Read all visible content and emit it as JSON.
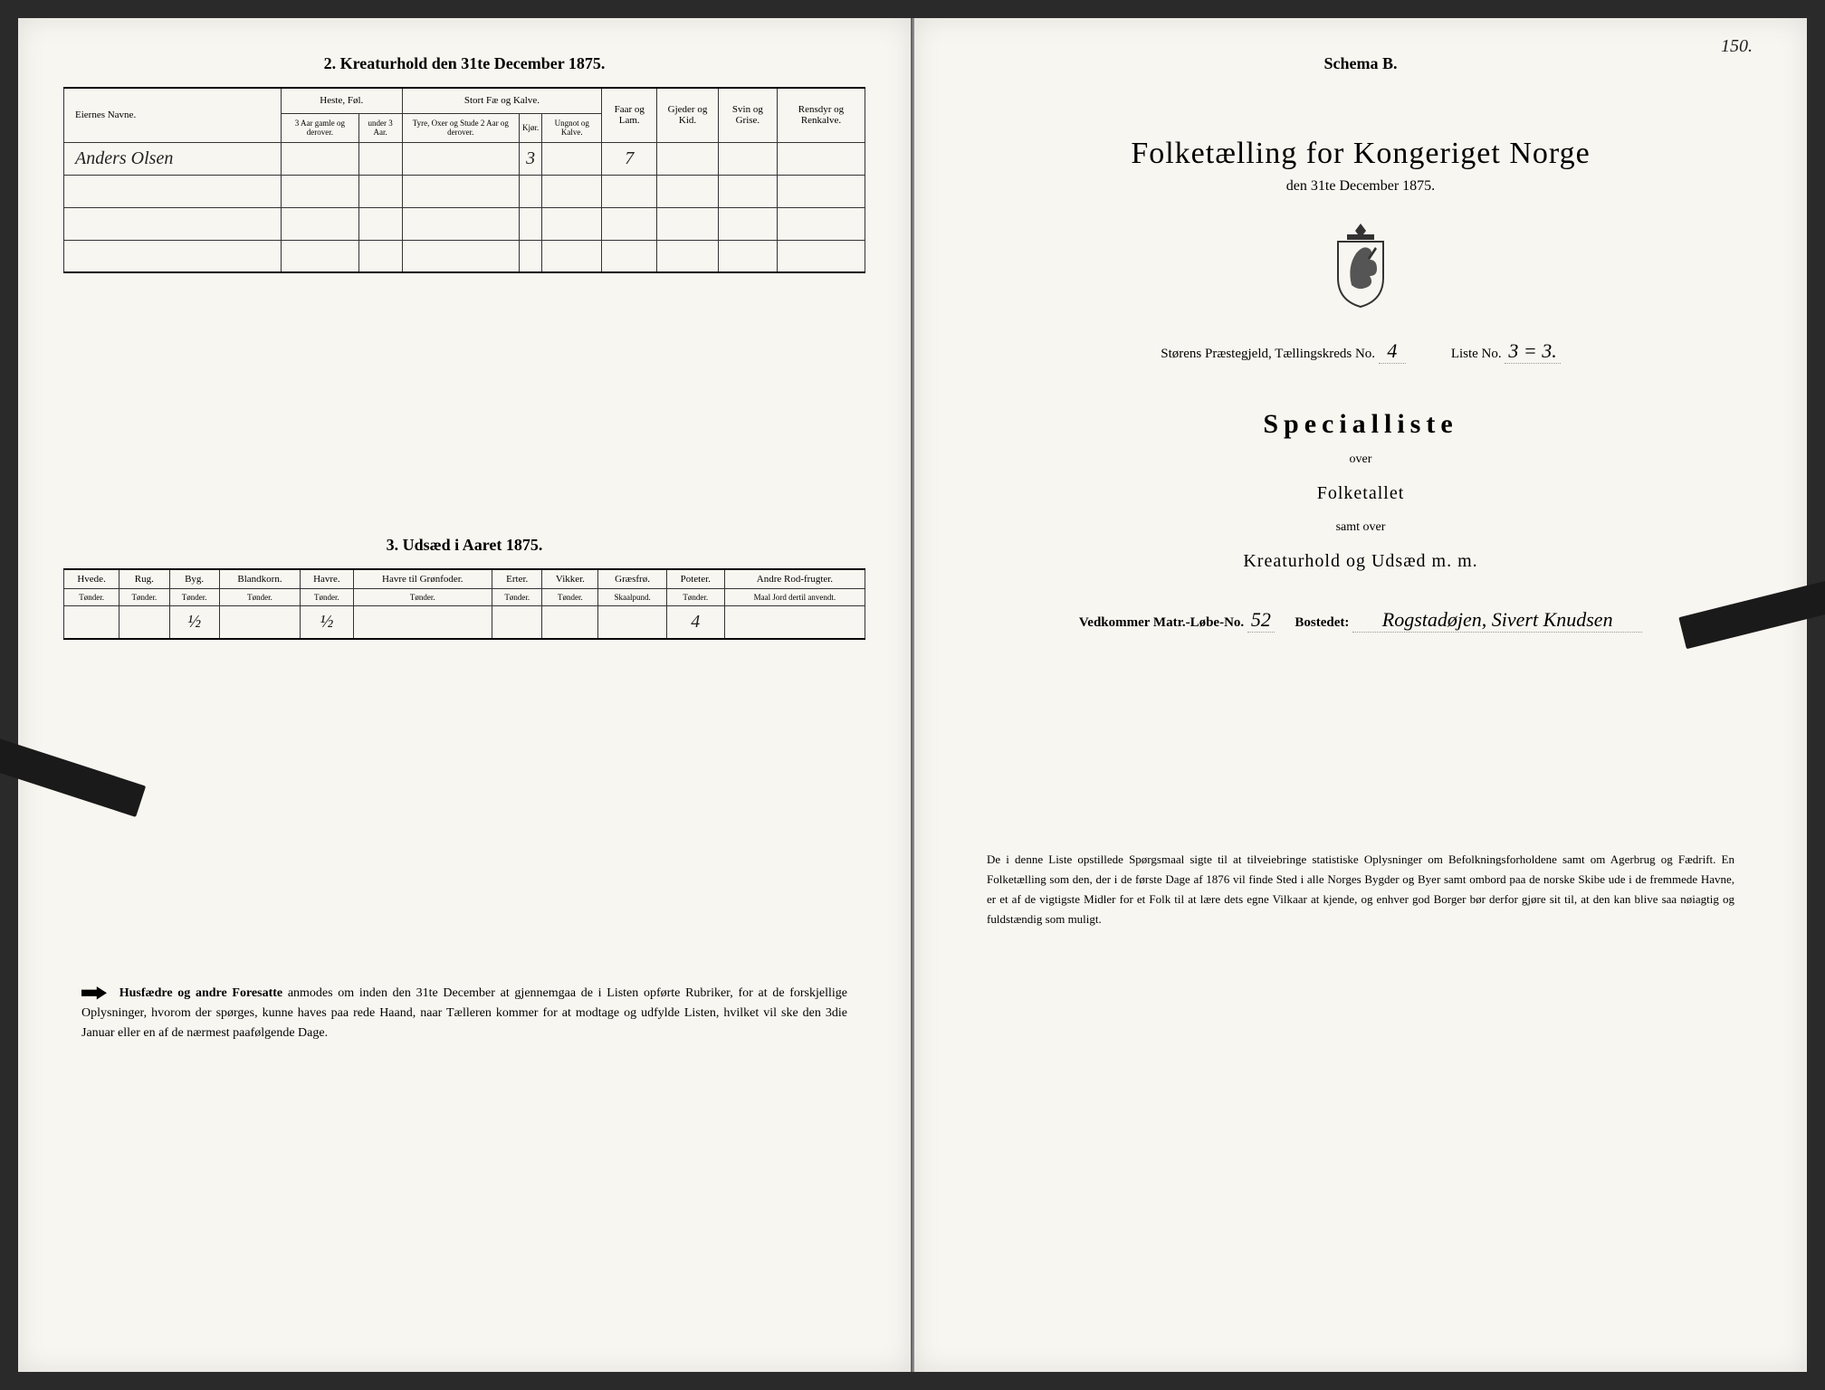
{
  "background_color": "#f8f6f0",
  "text_color": "#1a1a1a",
  "handwriting_color": "#222",
  "left": {
    "section2_title": "2.  Kreaturhold den 31te December 1875.",
    "kreatur_table": {
      "headers": {
        "eier": "Eiernes Navne.",
        "heste": "Heste, Føl.",
        "stort_fae": "Stort Fæ og Kalve.",
        "faar": "Faar og Lam.",
        "gjeder": "Gjeder og Kid.",
        "svin": "Svin og Grise.",
        "rensdyr": "Rensdyr og Renkalve."
      },
      "sub_headers": {
        "heste1": "3 Aar gamle og derover.",
        "heste2": "under 3 Aar.",
        "fae1": "Tyre, Oxer og Stude 2 Aar og derover.",
        "fae2": "Kjør.",
        "fae3": "Ungnot og Kalve."
      },
      "rows": [
        {
          "eier": "Anders Olsen",
          "heste1": "",
          "heste2": "",
          "fae1": "",
          "fae2": "3",
          "fae3": "",
          "faar": "7",
          "gjeder": "",
          "svin": "",
          "rensdyr": ""
        },
        {
          "eier": "",
          "heste1": "",
          "heste2": "",
          "fae1": "",
          "fae2": "",
          "fae3": "",
          "faar": "",
          "gjeder": "",
          "svin": "",
          "rensdyr": ""
        },
        {
          "eier": "",
          "heste1": "",
          "heste2": "",
          "fae1": "",
          "fae2": "",
          "fae3": "",
          "faar": "",
          "gjeder": "",
          "svin": "",
          "rensdyr": ""
        },
        {
          "eier": "",
          "heste1": "",
          "heste2": "",
          "fae1": "",
          "fae2": "",
          "fae3": "",
          "faar": "",
          "gjeder": "",
          "svin": "",
          "rensdyr": ""
        }
      ]
    },
    "section3_title": "3.  Udsæd i Aaret 1875.",
    "udsaed_table": {
      "headers": [
        "Hvede.",
        "Rug.",
        "Byg.",
        "Blandkorn.",
        "Havre.",
        "Havre til Grønfoder.",
        "Erter.",
        "Vikker.",
        "Græsfrø.",
        "Poteter.",
        "Andre Rod-frugter."
      ],
      "units": [
        "Tønder.",
        "Tønder.",
        "Tønder.",
        "Tønder.",
        "Tønder.",
        "Tønder.",
        "Tønder.",
        "Tønder.",
        "Skaalpund.",
        "Tønder.",
        "Maal Jord dertil anvendt."
      ],
      "row": [
        "",
        "",
        "½",
        "",
        "½",
        "",
        "",
        "",
        "",
        "4",
        ""
      ]
    },
    "footer_lead": "Husfædre og andre Foresatte",
    "footer_rest": " anmodes om inden den 31te December at gjennemgaa de i Listen opførte Rubriker, for at de forskjellige Oplysninger, hvorom der spørges, kunne haves paa rede Haand, naar Tælleren kommer for at modtage og udfylde Listen, hvilket vil ske den 3die Januar eller en af de nærmest paafølgende Dage."
  },
  "right": {
    "page_number_hw": "150.",
    "schema": "Schema B.",
    "main_title": "Folketælling for Kongeriget Norge",
    "main_subtitle": "den 31te December 1875.",
    "praestegjeld": "Størens Præstegjeld,  Tællingskreds No.",
    "kreds_no_hw": "4",
    "liste_label": "Liste No.",
    "liste_no_hw": "3  = 3.",
    "special": "Specialliste",
    "over": "over",
    "folketallet": "Folketallet",
    "samt": "samt over",
    "kreatur_line": "Kreaturhold og Udsæd m. m.",
    "matr_label": "Vedkommer Matr.-Løbe-No.",
    "matr_no_hw": "52",
    "bosted_label": "Bostedet:",
    "bosted_hw": "Rogstadøjen, Sivert Knudsen",
    "footer": "De i denne Liste opstillede Spørgsmaal sigte til at tilveiebringe statistiske Oplysninger om Befolkningsforholdene samt om Agerbrug og Fædrift.  En Folketælling som den, der i de første Dage af 1876 vil finde Sted i alle Norges Bygder og Byer samt ombord paa de norske Skibe ude i de fremmede Havne, er et af de vigtigste Midler for et Folk til at lære dets egne Vilkaar at kjende, og enhver god Borger bør derfor gjøre sit til, at den kan blive saa nøiagtig og fuldstændig som muligt."
  }
}
